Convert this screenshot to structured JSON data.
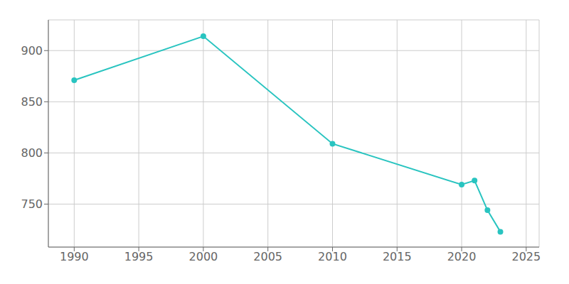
{
  "chart_data": {
    "type": "line",
    "x": [
      1990,
      2000,
      2010,
      2020,
      2021,
      2022,
      2023
    ],
    "values": [
      871,
      914,
      809,
      769,
      773,
      744,
      723
    ],
    "color": "#29C4C0",
    "marker": "circle",
    "xlim": [
      1988,
      2026
    ],
    "ylim": [
      708,
      930
    ],
    "xticks": [
      1990,
      1995,
      2000,
      2005,
      2010,
      2015,
      2020,
      2025
    ],
    "yticks": [
      750,
      800,
      850,
      900
    ],
    "grid": true
  }
}
